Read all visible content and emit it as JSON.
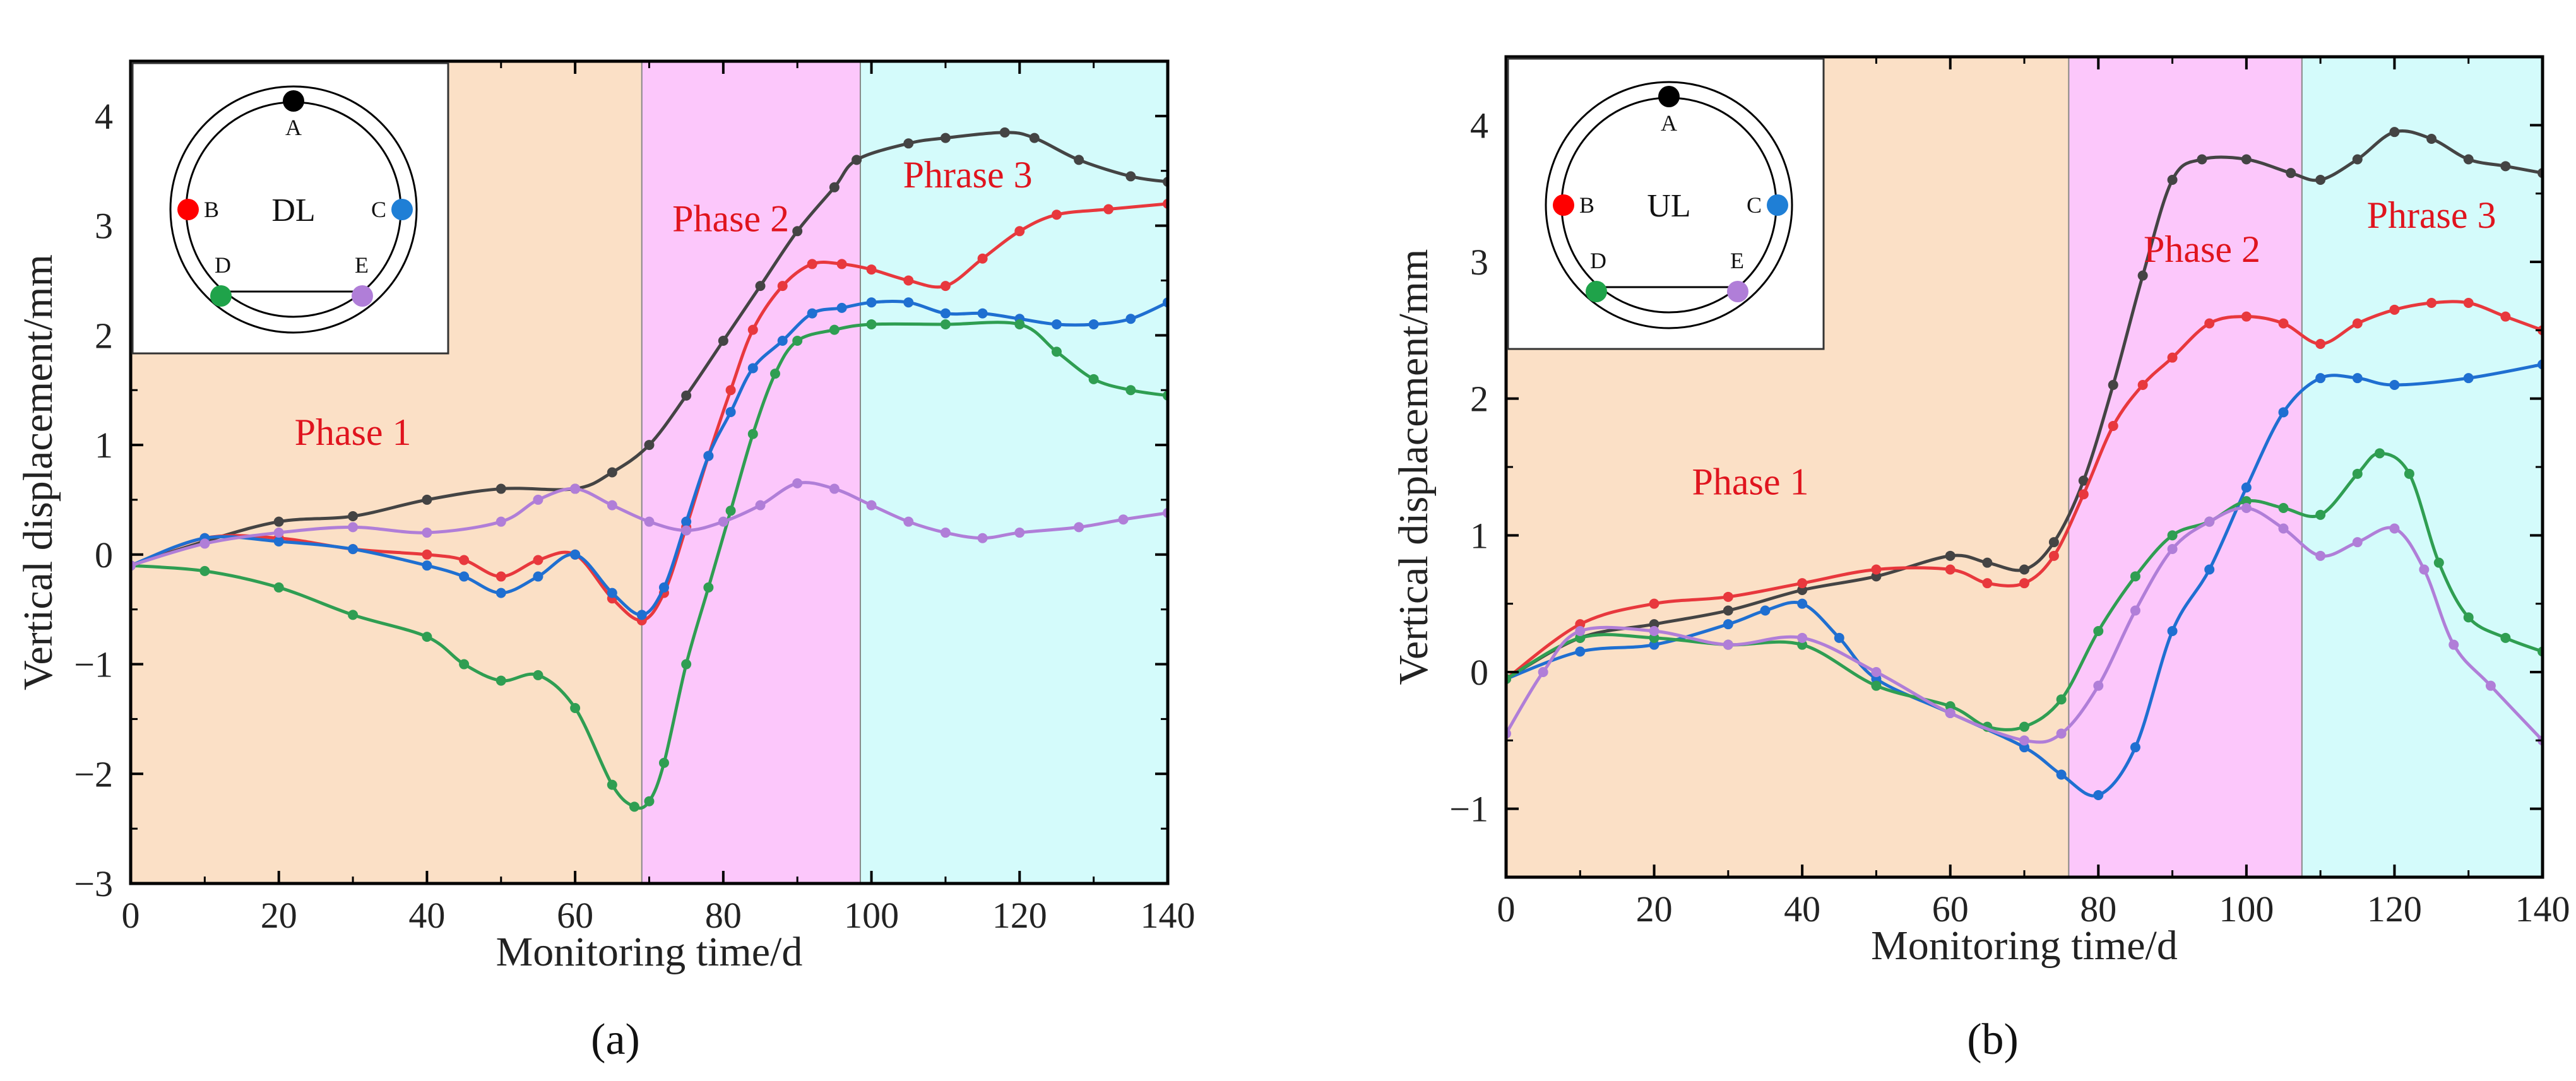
{
  "colors": {
    "A": "#444444",
    "B": "#e8383d",
    "C": "#1f6fd1",
    "D": "#2f9e52",
    "E": "#b07ed8",
    "phase1": "#fbe0c6",
    "phase2": "#fcc7fb",
    "phase3": "#d4fbfb",
    "phase_text": "#e0141e",
    "dot_A": "#000000",
    "dot_B": "#ff0000",
    "dot_C": "#1f7fd6",
    "dot_D": "#1fa34a",
    "dot_E": "#b07ed8"
  },
  "chart_data": [
    {
      "type": "line",
      "panel_label": "(a)",
      "xlabel": "Monitoring time/d",
      "ylabel": "Vertical displacement/mm",
      "xlim": [
        0,
        140
      ],
      "ylim": [
        -3,
        4.5
      ],
      "xticks": [
        0,
        20,
        40,
        60,
        80,
        100,
        120,
        140
      ],
      "yticks": [
        -3,
        -2,
        -1,
        0,
        1,
        2,
        3,
        4
      ],
      "phases": [
        {
          "label": "Phase 1",
          "start": 0,
          "end": 69,
          "label_x": 30,
          "label_y": 1.0
        },
        {
          "label": "Phase 2",
          "start": 69,
          "end": 98.5,
          "label_x": 81,
          "label_y": 2.95
        },
        {
          "label": "Phrase 3",
          "start": 98.5,
          "end": 140,
          "label_x": 113,
          "label_y": 3.35
        }
      ],
      "inset": {
        "label": "DL",
        "points": [
          "A",
          "B",
          "C",
          "D",
          "E"
        ]
      },
      "series": [
        {
          "name": "A",
          "key": "A",
          "points": [
            [
              0,
              -0.1
            ],
            [
              10,
              0.12
            ],
            [
              20,
              0.3
            ],
            [
              30,
              0.35
            ],
            [
              40,
              0.5
            ],
            [
              50,
              0.6
            ],
            [
              60,
              0.6
            ],
            [
              65,
              0.75
            ],
            [
              70,
              1.0
            ],
            [
              75,
              1.45
            ],
            [
              80,
              1.95
            ],
            [
              85,
              2.45
            ],
            [
              90,
              2.95
            ],
            [
              95,
              3.35
            ],
            [
              98,
              3.6
            ],
            [
              105,
              3.75
            ],
            [
              110,
              3.8
            ],
            [
              118,
              3.85
            ],
            [
              122,
              3.8
            ],
            [
              128,
              3.6
            ],
            [
              135,
              3.45
            ],
            [
              140,
              3.4
            ]
          ]
        },
        {
          "name": "B",
          "key": "B",
          "points": [
            [
              0,
              -0.1
            ],
            [
              10,
              0.15
            ],
            [
              20,
              0.15
            ],
            [
              30,
              0.05
            ],
            [
              40,
              0.0
            ],
            [
              45,
              -0.05
            ],
            [
              50,
              -0.2
            ],
            [
              55,
              -0.05
            ],
            [
              60,
              0.0
            ],
            [
              65,
              -0.4
            ],
            [
              69,
              -0.6
            ],
            [
              72,
              -0.35
            ],
            [
              75,
              0.25
            ],
            [
              78,
              0.9
            ],
            [
              81,
              1.5
            ],
            [
              84,
              2.05
            ],
            [
              88,
              2.45
            ],
            [
              92,
              2.65
            ],
            [
              96,
              2.65
            ],
            [
              100,
              2.6
            ],
            [
              105,
              2.5
            ],
            [
              110,
              2.45
            ],
            [
              115,
              2.7
            ],
            [
              120,
              2.95
            ],
            [
              125,
              3.1
            ],
            [
              132,
              3.15
            ],
            [
              140,
              3.2
            ]
          ]
        },
        {
          "name": "C",
          "key": "C",
          "points": [
            [
              0,
              -0.1
            ],
            [
              10,
              0.15
            ],
            [
              20,
              0.12
            ],
            [
              30,
              0.05
            ],
            [
              40,
              -0.1
            ],
            [
              45,
              -0.2
            ],
            [
              50,
              -0.35
            ],
            [
              55,
              -0.2
            ],
            [
              60,
              0.0
            ],
            [
              65,
              -0.35
            ],
            [
              69,
              -0.55
            ],
            [
              72,
              -0.3
            ],
            [
              75,
              0.3
            ],
            [
              78,
              0.9
            ],
            [
              81,
              1.3
            ],
            [
              84,
              1.7
            ],
            [
              88,
              1.95
            ],
            [
              92,
              2.2
            ],
            [
              96,
              2.25
            ],
            [
              100,
              2.3
            ],
            [
              105,
              2.3
            ],
            [
              110,
              2.2
            ],
            [
              115,
              2.2
            ],
            [
              120,
              2.15
            ],
            [
              125,
              2.1
            ],
            [
              130,
              2.1
            ],
            [
              135,
              2.15
            ],
            [
              140,
              2.3
            ]
          ]
        },
        {
          "name": "D",
          "key": "D",
          "points": [
            [
              0,
              -0.1
            ],
            [
              10,
              -0.15
            ],
            [
              20,
              -0.3
            ],
            [
              30,
              -0.55
            ],
            [
              40,
              -0.75
            ],
            [
              45,
              -1.0
            ],
            [
              50,
              -1.15
            ],
            [
              55,
              -1.1
            ],
            [
              60,
              -1.4
            ],
            [
              65,
              -2.1
            ],
            [
              68,
              -2.3
            ],
            [
              70,
              -2.25
            ],
            [
              72,
              -1.9
            ],
            [
              75,
              -1.0
            ],
            [
              78,
              -0.3
            ],
            [
              81,
              0.4
            ],
            [
              84,
              1.1
            ],
            [
              87,
              1.65
            ],
            [
              90,
              1.95
            ],
            [
              95,
              2.05
            ],
            [
              100,
              2.1
            ],
            [
              110,
              2.1
            ],
            [
              120,
              2.1
            ],
            [
              125,
              1.85
            ],
            [
              130,
              1.6
            ],
            [
              135,
              1.5
            ],
            [
              140,
              1.45
            ]
          ]
        },
        {
          "name": "E",
          "key": "E",
          "points": [
            [
              0,
              -0.1
            ],
            [
              10,
              0.1
            ],
            [
              20,
              0.2
            ],
            [
              30,
              0.25
            ],
            [
              40,
              0.2
            ],
            [
              50,
              0.3
            ],
            [
              55,
              0.5
            ],
            [
              60,
              0.6
            ],
            [
              65,
              0.45
            ],
            [
              70,
              0.3
            ],
            [
              75,
              0.22
            ],
            [
              80,
              0.3
            ],
            [
              85,
              0.45
            ],
            [
              90,
              0.65
            ],
            [
              95,
              0.6
            ],
            [
              100,
              0.45
            ],
            [
              105,
              0.3
            ],
            [
              110,
              0.2
            ],
            [
              115,
              0.15
            ],
            [
              120,
              0.2
            ],
            [
              128,
              0.25
            ],
            [
              134,
              0.32
            ],
            [
              140,
              0.38
            ]
          ]
        }
      ]
    },
    {
      "type": "line",
      "panel_label": "(b)",
      "xlabel": "Monitoring time/d",
      "ylabel": "Vertical displacement/mm",
      "xlim": [
        0,
        140
      ],
      "ylim": [
        -1.5,
        4.5
      ],
      "xticks": [
        0,
        20,
        40,
        60,
        80,
        100,
        120,
        140
      ],
      "yticks": [
        -1,
        0,
        1,
        2,
        3,
        4
      ],
      "phases": [
        {
          "label": "Phase 1",
          "start": 0,
          "end": 76,
          "label_x": 33,
          "label_y": 1.3
        },
        {
          "label": "Phase 2",
          "start": 76,
          "end": 107.5,
          "label_x": 94,
          "label_y": 3.0
        },
        {
          "label": "Phrase 3",
          "start": 107.5,
          "end": 140,
          "label_x": 125,
          "label_y": 3.25
        }
      ],
      "inset": {
        "label": "UL",
        "points": [
          "A",
          "B",
          "C",
          "D",
          "E"
        ]
      },
      "series": [
        {
          "name": "A",
          "key": "A",
          "points": [
            [
              0,
              -0.05
            ],
            [
              10,
              0.25
            ],
            [
              20,
              0.35
            ],
            [
              30,
              0.45
            ],
            [
              40,
              0.6
            ],
            [
              50,
              0.7
            ],
            [
              60,
              0.85
            ],
            [
              65,
              0.8
            ],
            [
              70,
              0.75
            ],
            [
              74,
              0.95
            ],
            [
              78,
              1.4
            ],
            [
              82,
              2.1
            ],
            [
              86,
              2.9
            ],
            [
              90,
              3.6
            ],
            [
              94,
              3.75
            ],
            [
              100,
              3.75
            ],
            [
              106,
              3.65
            ],
            [
              110,
              3.6
            ],
            [
              115,
              3.75
            ],
            [
              120,
              3.95
            ],
            [
              125,
              3.9
            ],
            [
              130,
              3.75
            ],
            [
              135,
              3.7
            ],
            [
              140,
              3.65
            ]
          ]
        },
        {
          "name": "B",
          "key": "B",
          "points": [
            [
              0,
              -0.05
            ],
            [
              10,
              0.35
            ],
            [
              20,
              0.5
            ],
            [
              30,
              0.55
            ],
            [
              40,
              0.65
            ],
            [
              50,
              0.75
            ],
            [
              60,
              0.75
            ],
            [
              65,
              0.65
            ],
            [
              70,
              0.65
            ],
            [
              74,
              0.85
            ],
            [
              78,
              1.3
            ],
            [
              82,
              1.8
            ],
            [
              86,
              2.1
            ],
            [
              90,
              2.3
            ],
            [
              95,
              2.55
            ],
            [
              100,
              2.6
            ],
            [
              105,
              2.55
            ],
            [
              110,
              2.4
            ],
            [
              115,
              2.55
            ],
            [
              120,
              2.65
            ],
            [
              125,
              2.7
            ],
            [
              130,
              2.7
            ],
            [
              135,
              2.6
            ],
            [
              140,
              2.5
            ]
          ]
        },
        {
          "name": "C",
          "key": "C",
          "points": [
            [
              0,
              -0.05
            ],
            [
              10,
              0.15
            ],
            [
              20,
              0.2
            ],
            [
              30,
              0.35
            ],
            [
              35,
              0.45
            ],
            [
              40,
              0.5
            ],
            [
              45,
              0.25
            ],
            [
              50,
              -0.05
            ],
            [
              60,
              -0.3
            ],
            [
              70,
              -0.55
            ],
            [
              75,
              -0.75
            ],
            [
              80,
              -0.9
            ],
            [
              85,
              -0.55
            ],
            [
              90,
              0.3
            ],
            [
              95,
              0.75
            ],
            [
              100,
              1.35
            ],
            [
              105,
              1.9
            ],
            [
              110,
              2.15
            ],
            [
              115,
              2.15
            ],
            [
              120,
              2.1
            ],
            [
              130,
              2.15
            ],
            [
              140,
              2.25
            ]
          ]
        },
        {
          "name": "D",
          "key": "D",
          "points": [
            [
              0,
              -0.05
            ],
            [
              10,
              0.25
            ],
            [
              20,
              0.25
            ],
            [
              30,
              0.2
            ],
            [
              40,
              0.2
            ],
            [
              50,
              -0.1
            ],
            [
              60,
              -0.25
            ],
            [
              65,
              -0.4
            ],
            [
              70,
              -0.4
            ],
            [
              75,
              -0.2
            ],
            [
              80,
              0.3
            ],
            [
              85,
              0.7
            ],
            [
              90,
              1.0
            ],
            [
              95,
              1.1
            ],
            [
              100,
              1.25
            ],
            [
              105,
              1.2
            ],
            [
              110,
              1.15
            ],
            [
              115,
              1.45
            ],
            [
              118,
              1.6
            ],
            [
              122,
              1.45
            ],
            [
              126,
              0.8
            ],
            [
              130,
              0.4
            ],
            [
              135,
              0.25
            ],
            [
              140,
              0.15
            ]
          ]
        },
        {
          "name": "E",
          "key": "E",
          "points": [
            [
              0,
              -0.45
            ],
            [
              5,
              0.0
            ],
            [
              10,
              0.3
            ],
            [
              20,
              0.3
            ],
            [
              30,
              0.2
            ],
            [
              40,
              0.25
            ],
            [
              50,
              0.0
            ],
            [
              60,
              -0.3
            ],
            [
              70,
              -0.5
            ],
            [
              75,
              -0.45
            ],
            [
              80,
              -0.1
            ],
            [
              85,
              0.45
            ],
            [
              90,
              0.9
            ],
            [
              95,
              1.1
            ],
            [
              100,
              1.2
            ],
            [
              105,
              1.05
            ],
            [
              110,
              0.85
            ],
            [
              115,
              0.95
            ],
            [
              120,
              1.05
            ],
            [
              124,
              0.75
            ],
            [
              128,
              0.2
            ],
            [
              133,
              -0.1
            ],
            [
              140,
              -0.5
            ]
          ]
        }
      ]
    }
  ]
}
